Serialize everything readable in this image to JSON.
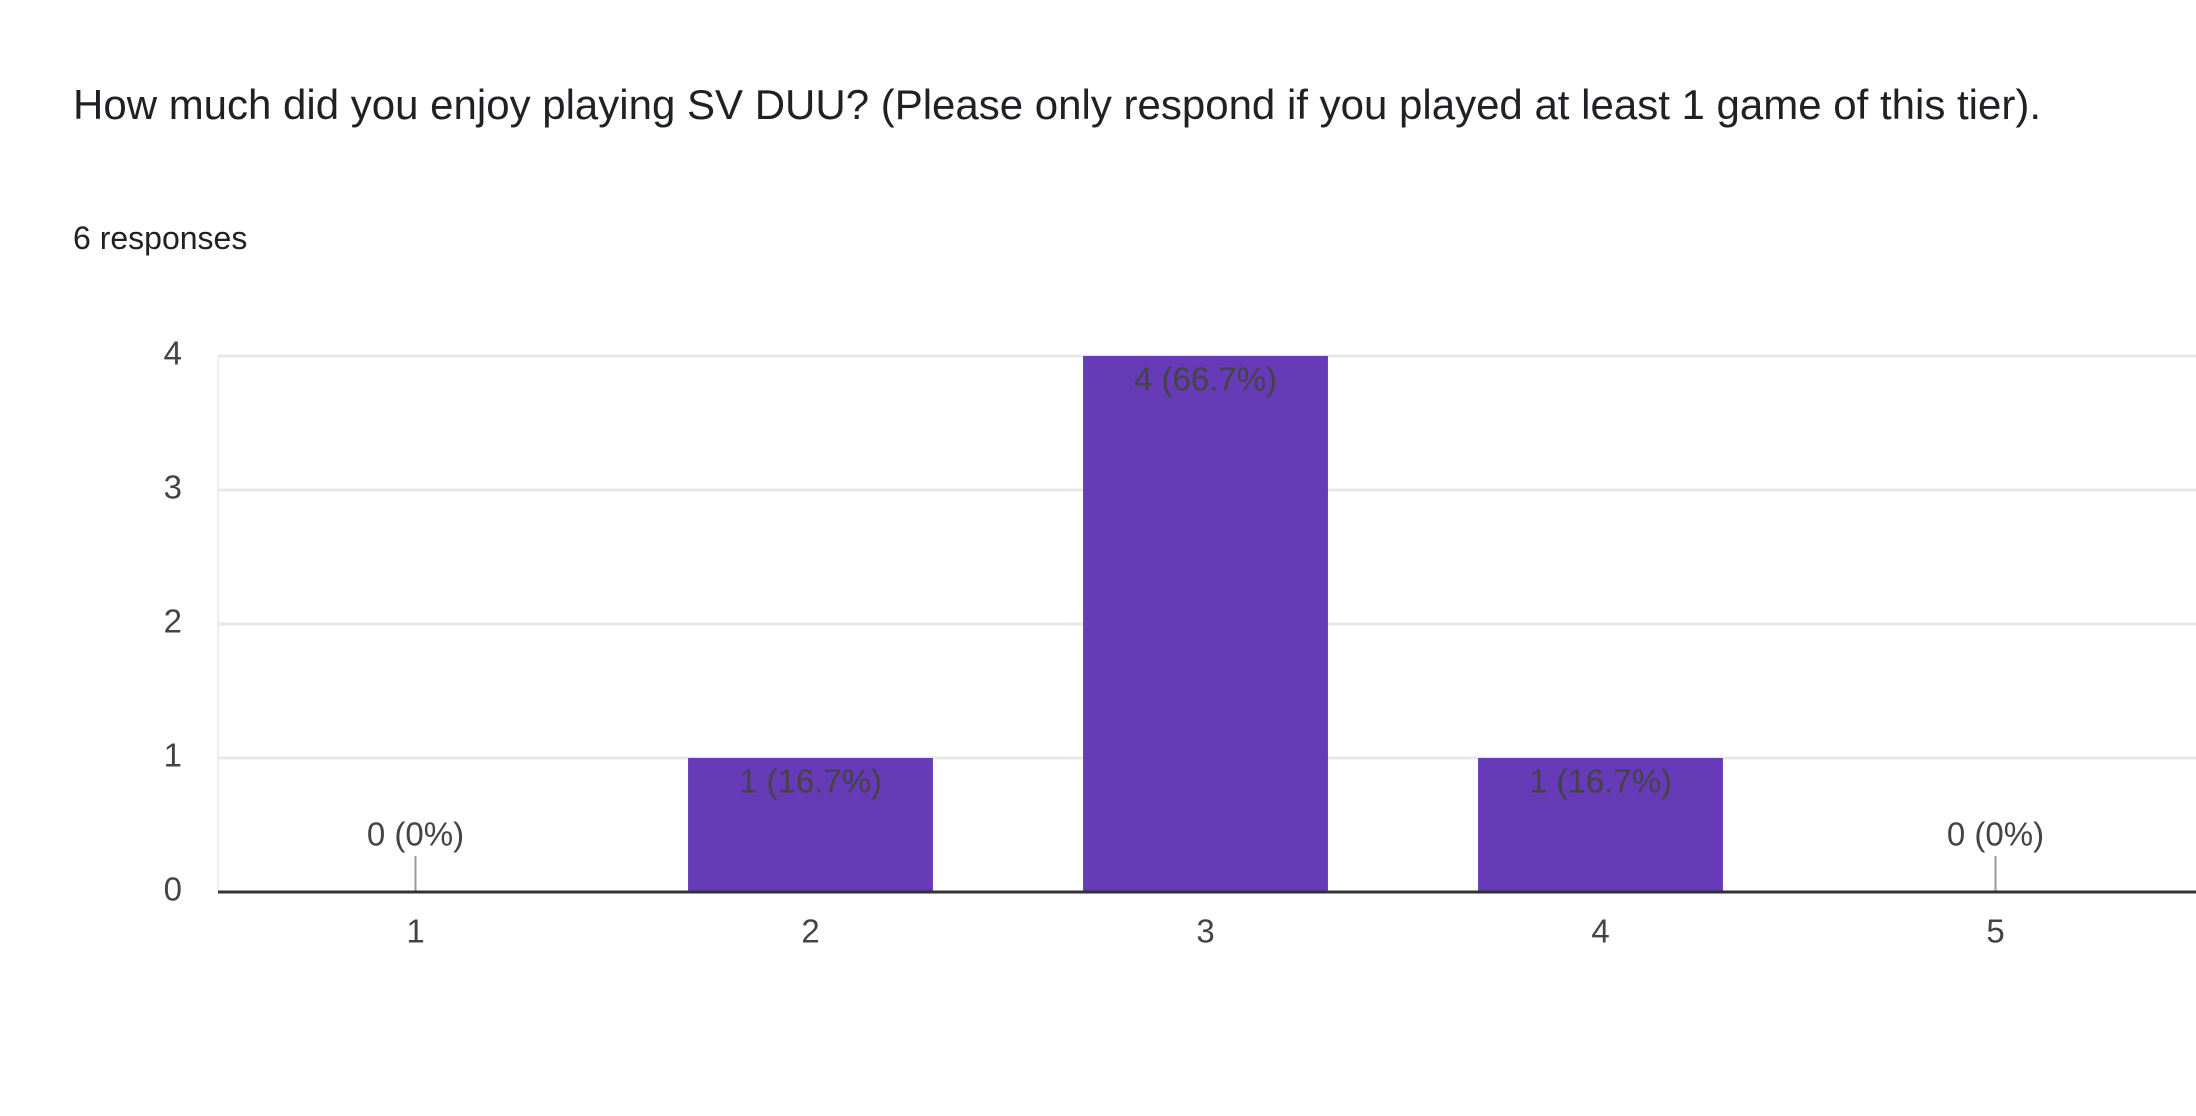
{
  "chart_data": {
    "type": "bar",
    "title": "How much did you enjoy playing SV DUU? (Please only respond if you played at least 1 game of this tier).",
    "subtitle": "6 responses",
    "categories": [
      "1",
      "2",
      "3",
      "4",
      "5"
    ],
    "values": [
      0,
      1,
      4,
      1,
      0
    ],
    "value_labels": [
      "0 (0%)",
      "1 (16.7%)",
      "4 (66.7%)",
      "1 (16.7%)",
      "0 (0%)"
    ],
    "color": "#673ab7",
    "ylim": [
      0,
      4
    ],
    "yticks": [
      0,
      1,
      2,
      3,
      4
    ],
    "grid": true
  }
}
